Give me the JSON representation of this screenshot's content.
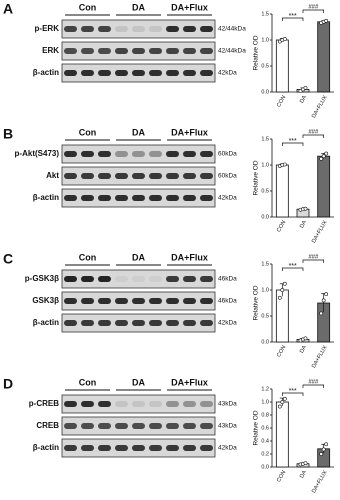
{
  "panels": [
    {
      "label": "A",
      "groups": [
        "Con",
        "DA",
        "DA+Flux"
      ],
      "rows": [
        {
          "name": "p-ERK",
          "size": "42/44kDa"
        },
        {
          "name": "ERK",
          "size": "42/44kDa"
        },
        {
          "name": "β-actin",
          "size": "42kDa"
        }
      ]
    },
    {
      "label": "B",
      "groups": [
        "Con",
        "DA",
        "DA+Flux"
      ],
      "rows": [
        {
          "name": "p-Akt(S473)",
          "size": "60kDa"
        },
        {
          "name": "Akt",
          "size": "60kDa"
        },
        {
          "name": "β-actin",
          "size": "42kDa"
        }
      ]
    },
    {
      "label": "C",
      "groups": [
        "Con",
        "DA",
        "DA+Flux"
      ],
      "rows": [
        {
          "name": "p-GSK3β",
          "size": "46kDa"
        },
        {
          "name": "GSK3β",
          "size": "46kDa"
        },
        {
          "name": "β-actin",
          "size": "42kDa"
        }
      ]
    },
    {
      "label": "D",
      "groups": [
        "Con",
        "DA",
        "DA+Flux"
      ],
      "rows": [
        {
          "name": "p-CREB",
          "size": "43kDa"
        },
        {
          "name": "CREB",
          "size": "43kDa"
        },
        {
          "name": "β-actin",
          "size": "42kDa"
        }
      ]
    }
  ],
  "chart_data": [
    {
      "type": "bar",
      "ylabel": "Relative OD",
      "categories": [
        "CON",
        "DA",
        "DA+FLUX"
      ],
      "colors": [
        "#ffffff",
        "#d9d9d9",
        "#6b6b6b"
      ],
      "values": [
        1.0,
        0.05,
        1.35
      ],
      "errors": [
        0.03,
        0.03,
        0.02
      ],
      "points": [
        [
          0.97,
          1.0,
          1.02
        ],
        [
          0.02,
          0.05,
          0.08
        ],
        [
          1.33,
          1.35,
          1.37
        ]
      ],
      "ylim": [
        0,
        1.5
      ],
      "yticks": [
        {
          "value": 0,
          "label": "0.0"
        },
        {
          "value": 0.5,
          "label": "0.5"
        },
        {
          "value": 1,
          "label": "1.0"
        },
        {
          "value": 1.5,
          "label": "1.5"
        }
      ],
      "annotations": [
        "***",
        "###"
      ]
    },
    {
      "type": "bar",
      "ylabel": "Relative OD",
      "categories": [
        "CON",
        "DA",
        "DA+FLUX"
      ],
      "colors": [
        "#ffffff",
        "#d9d9d9",
        "#6b6b6b"
      ],
      "values": [
        1.0,
        0.15,
        1.17
      ],
      "errors": [
        0.02,
        0.01,
        0.05
      ],
      "points": [
        [
          0.98,
          1.0,
          1.01
        ],
        [
          0.14,
          0.15,
          0.16
        ],
        [
          1.12,
          1.17,
          1.22
        ]
      ],
      "ylim": [
        0,
        1.5
      ],
      "yticks": [
        {
          "value": 0,
          "label": "0.0"
        },
        {
          "value": 0.5,
          "label": "0.5"
        },
        {
          "value": 1,
          "label": "1.0"
        },
        {
          "value": 1.5,
          "label": "1.5"
        }
      ],
      "annotations": [
        "***",
        "###"
      ]
    },
    {
      "type": "bar",
      "ylabel": "Relative OD",
      "categories": [
        "CON",
        "DA",
        "DA+FLUX"
      ],
      "colors": [
        "#ffffff",
        "#d9d9d9",
        "#6b6b6b"
      ],
      "values": [
        1.0,
        0.05,
        0.75
      ],
      "errors": [
        0.12,
        0.02,
        0.18
      ],
      "points": [
        [
          0.85,
          1.0,
          1.12
        ],
        [
          0.03,
          0.05,
          0.07
        ],
        [
          0.55,
          0.8,
          0.92
        ]
      ],
      "ylim": [
        0,
        1.5
      ],
      "yticks": [
        {
          "value": 0,
          "label": "0.0"
        },
        {
          "value": 0.5,
          "label": "0.5"
        },
        {
          "value": 1,
          "label": "1.0"
        },
        {
          "value": 1.5,
          "label": "1.5"
        }
      ],
      "annotations": [
        "***",
        "###"
      ]
    },
    {
      "type": "bar",
      "ylabel": "Relative OD",
      "categories": [
        "CON",
        "DA",
        "DA+FLUX"
      ],
      "colors": [
        "#ffffff",
        "#d9d9d9",
        "#6b6b6b"
      ],
      "values": [
        1.0,
        0.05,
        0.28
      ],
      "errors": [
        0.06,
        0.01,
        0.07
      ],
      "points": [
        [
          0.93,
          1.0,
          1.05
        ],
        [
          0.04,
          0.05,
          0.06
        ],
        [
          0.2,
          0.27,
          0.35
        ]
      ],
      "ylim": [
        0,
        1.2
      ],
      "yticks": [
        {
          "value": 0,
          "label": "0.0"
        },
        {
          "value": 0.2,
          "label": "0.2"
        },
        {
          "value": 0.4,
          "label": "0.4"
        },
        {
          "value": 0.6,
          "label": "0.6"
        },
        {
          "value": 0.8,
          "label": "0.8"
        },
        {
          "value": 1,
          "label": "1.0"
        },
        {
          "value": 1.2,
          "label": "1.2"
        }
      ],
      "annotations": [
        "***",
        "###"
      ]
    }
  ]
}
